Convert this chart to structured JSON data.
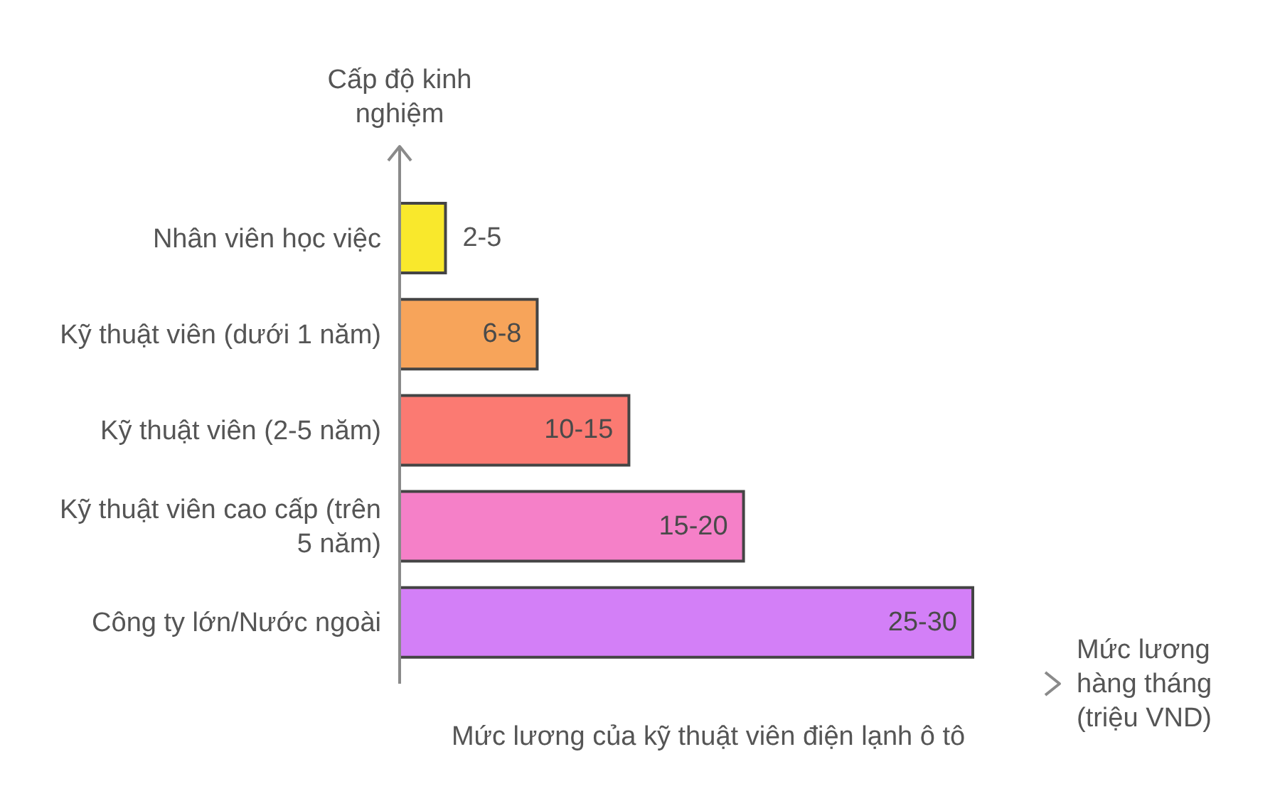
{
  "chart_data": {
    "type": "bar",
    "orientation": "horizontal",
    "title": "Mức lương của kỹ thuật viên điện lạnh ô tô",
    "xlabel": "Mức lương hàng tháng (triệu VND)",
    "ylabel": "Cấp độ kinh nghiệm",
    "categories": [
      "Nhân viên học việc",
      "Kỹ thuật viên (dưới 1 năm)",
      "Kỹ thuật viên (2-5 năm)",
      "Kỹ thuật viên cao cấp (trên 5 năm)",
      "Công ty lớn/Nước ngoài"
    ],
    "values": [
      2,
      6,
      10,
      15,
      25
    ],
    "colors": [
      "#f9e82c",
      "#f7a45a",
      "#fb7a72",
      "#f580c8",
      "#d37ff7"
    ],
    "value_labels": [
      "2-5",
      "6-8",
      "10-15",
      "15-20",
      "25-30"
    ],
    "tick_labels": "y"
  }
}
